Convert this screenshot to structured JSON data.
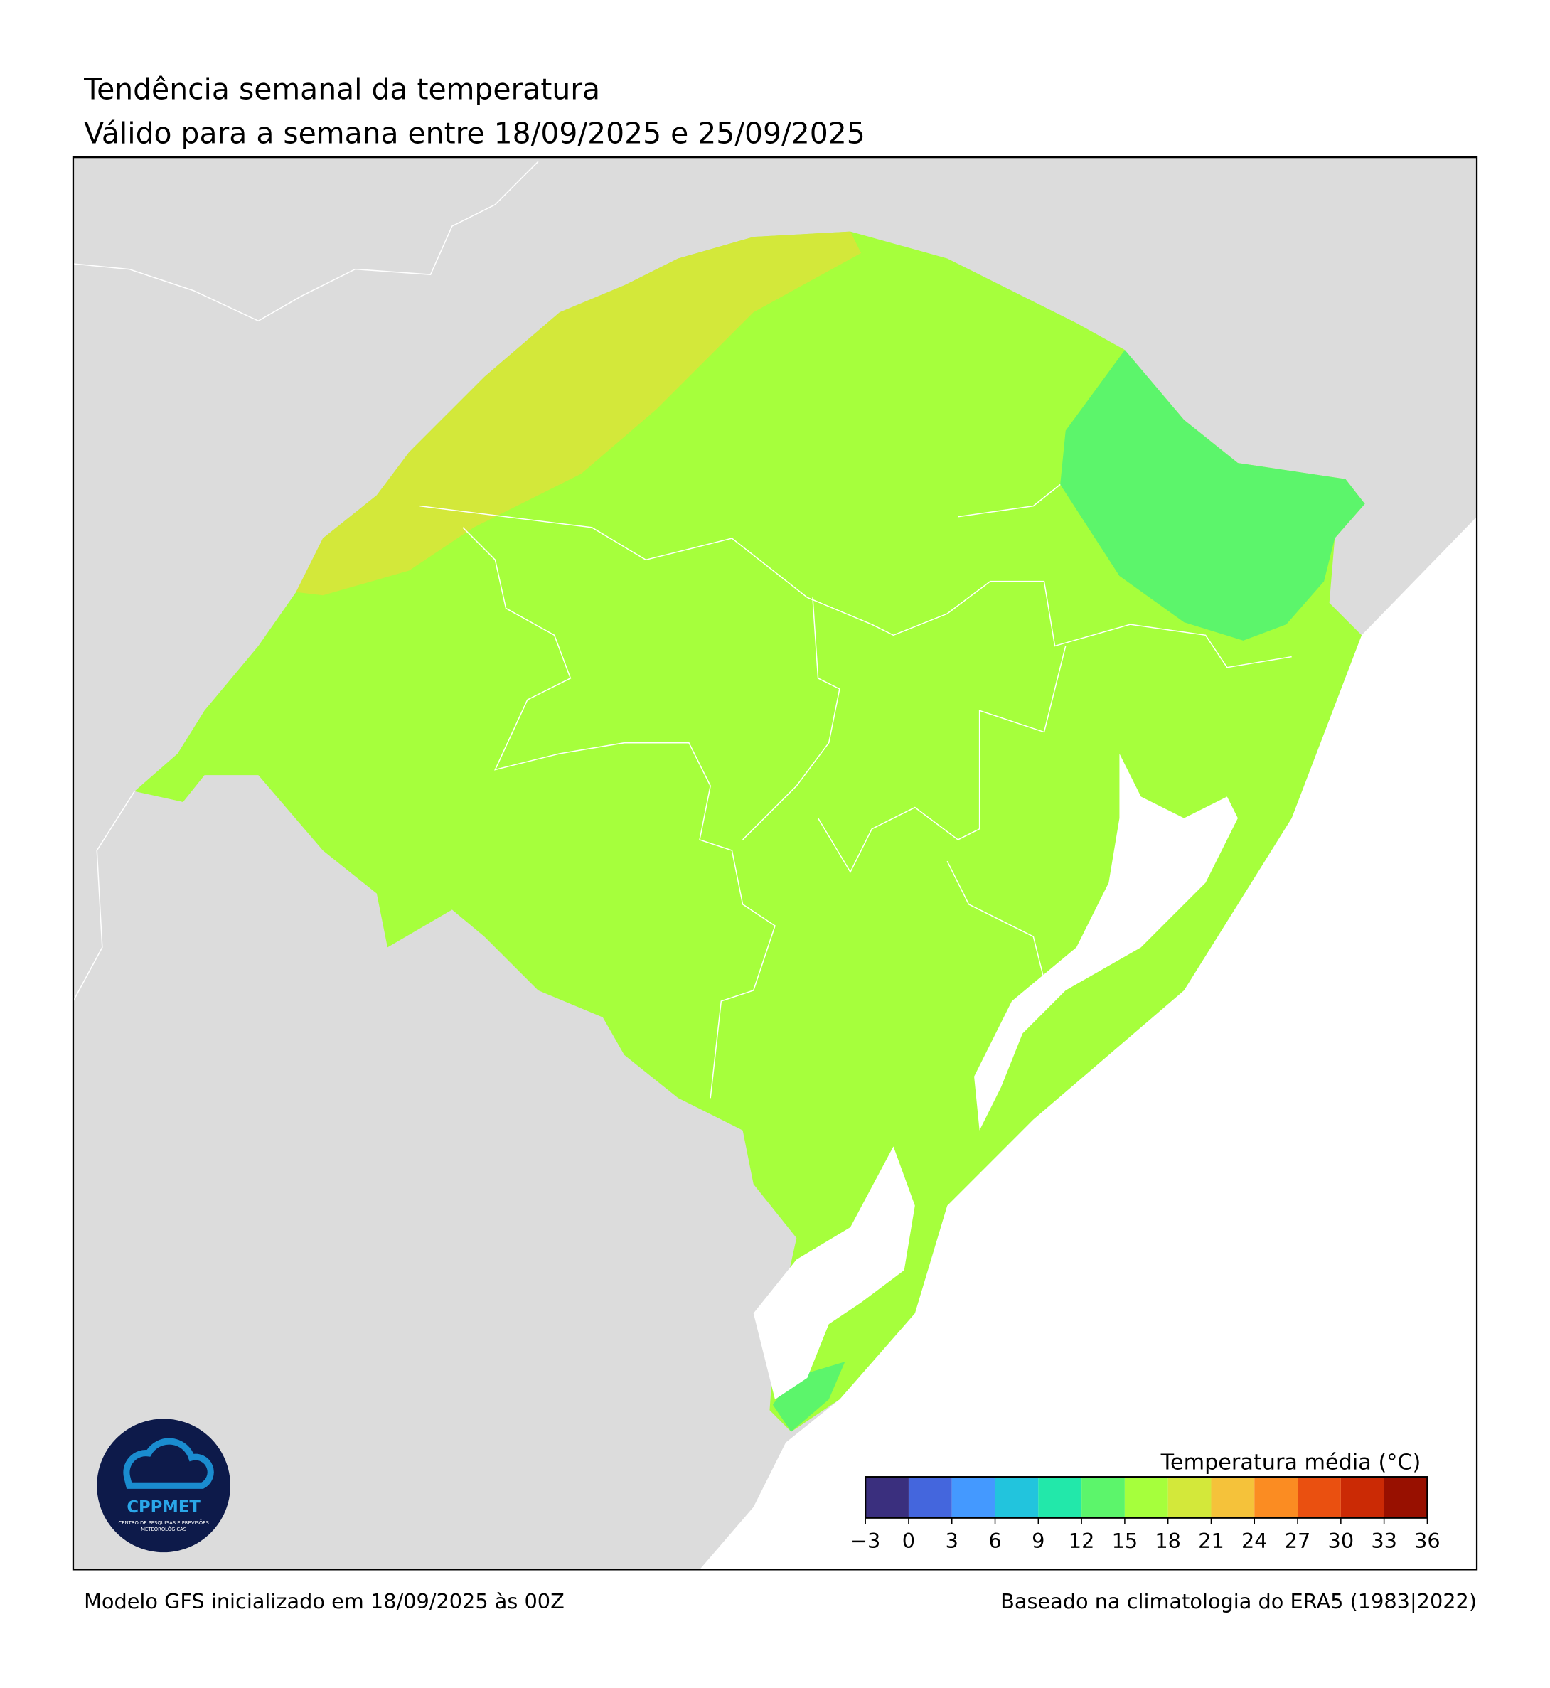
{
  "header": {
    "title": "Tendência semanal da temperatura",
    "subtitle": "Válido para a semana entre 18/09/2025 e 25/09/2025"
  },
  "legend": {
    "title": "Temperatura média (°C)",
    "ticks": [
      {
        "value": -3,
        "label": "−3"
      },
      0,
      3,
      6,
      9,
      12,
      15,
      18,
      21,
      24,
      27,
      30,
      33,
      36
    ],
    "colors": [
      "#3a2f7e",
      "#4466dd",
      "#4499ff",
      "#22c4dd",
      "#22e8aa",
      "#5cf56b",
      "#a6ff3c",
      "#d3e83a",
      "#f5c23a",
      "#fb8c22",
      "#ea5010",
      "#cb2a05",
      "#981000"
    ]
  },
  "logo": {
    "name": "CPPMET",
    "tagline": [
      "CENTRO DE PESQUISAS E PREVISÕES",
      "METEOROLÓGICAS"
    ]
  },
  "footer": {
    "left": "Modelo GFS inicializado em 18/09/2025 às 00Z",
    "right": "Baseado na climatologia do ERA5 (1983|2022)"
  }
}
